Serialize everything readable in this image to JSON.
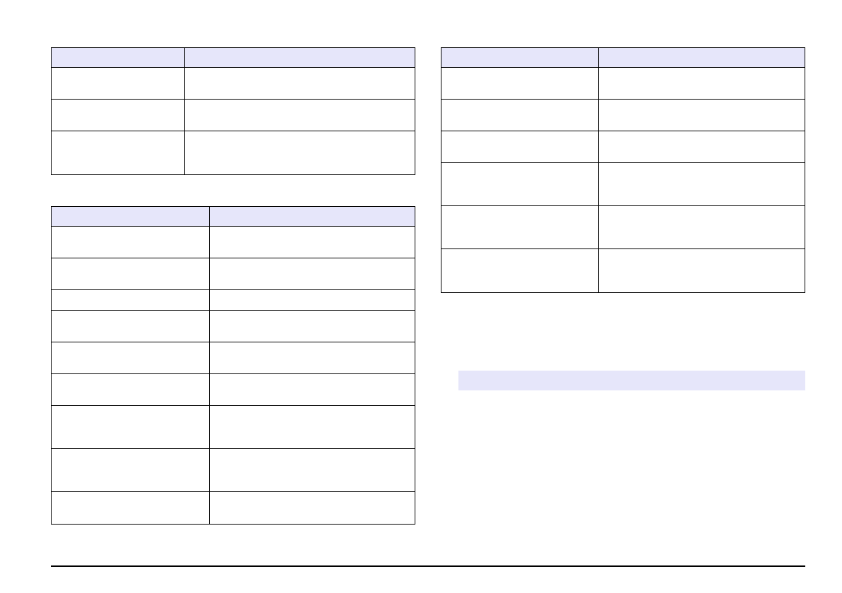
{
  "colors": {
    "header_fill": "#e6e6fa",
    "border": "#000000",
    "note_bar_fill": "#e6e6fa"
  }
}
